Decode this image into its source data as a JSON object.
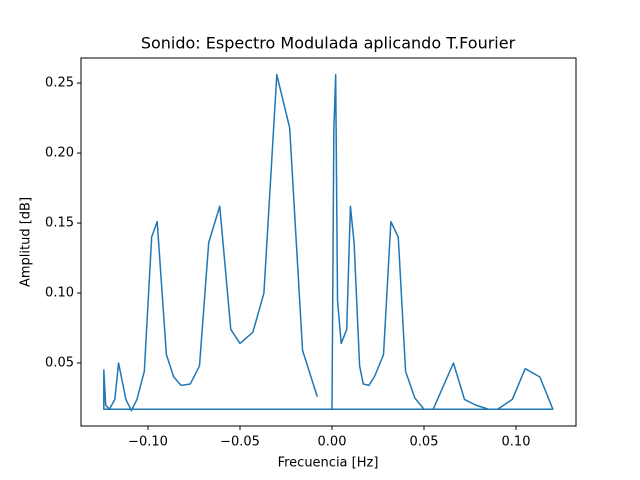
{
  "chart_data": {
    "type": "line",
    "title": "Sonido: Espectro Modulada aplicando T.Fourier",
    "title_color": "#0000ff",
    "x_label": "Frecuencia [Hz]",
    "x_label_color": "#ff0000",
    "y_label": "Amplitud [dB]",
    "y_label_color": "#ffa500",
    "xlim": [
      -0.1364,
      0.1326
    ],
    "ylim": [
      0.005,
      0.2679
    ],
    "xticks": [
      {
        "value": -0.1,
        "label": "−0.10"
      },
      {
        "value": -0.05,
        "label": "−0.05"
      },
      {
        "value": 0,
        "label": "0.00"
      },
      0.05,
      {
        "value": 0.1,
        "label": "0.10"
      }
    ],
    "yticks": [
      0.05,
      {
        "value": 0.1,
        "label": "0.10"
      },
      0.15,
      {
        "value": 0.2,
        "label": "0.20"
      },
      0.25
    ],
    "series": [
      {
        "color": "#1f77b4",
        "x": [
          0.0,
          0.001,
          0.002,
          0.003,
          0.005,
          0.008,
          0.01,
          0.012,
          0.015,
          0.017,
          0.02,
          0.023,
          0.028,
          0.032,
          0.036,
          0.04,
          0.045,
          0.05,
          0.055,
          0.066,
          0.072,
          0.078,
          0.085,
          0.09,
          0.098,
          0.105,
          0.113,
          0.12,
          -0.124,
          -0.124,
          -0.123,
          -0.121,
          -0.118,
          -0.116,
          -0.112,
          -0.109,
          -0.106,
          -0.102,
          -0.098,
          -0.095,
          -0.09,
          -0.086,
          -0.082,
          -0.077,
          -0.072,
          -0.067,
          -0.061,
          -0.055,
          -0.05,
          -0.043,
          -0.037,
          -0.03,
          -0.023,
          -0.016,
          -0.008
        ],
        "values": [
          0.017,
          0.216,
          0.256,
          0.095,
          0.064,
          0.074,
          0.162,
          0.136,
          0.048,
          0.035,
          0.034,
          0.04,
          0.056,
          0.151,
          0.14,
          0.044,
          0.025,
          0.017,
          0.017,
          0.05,
          0.024,
          0.02,
          0.017,
          0.017,
          0.024,
          0.046,
          0.04,
          0.017,
          0.017,
          0.045,
          0.02,
          0.017,
          0.024,
          0.05,
          0.024,
          0.016,
          0.024,
          0.044,
          0.14,
          0.151,
          0.056,
          0.04,
          0.034,
          0.035,
          0.048,
          0.136,
          0.162,
          0.074,
          0.064,
          0.072,
          0.1,
          0.256,
          0.218,
          0.059,
          0.026
        ]
      }
    ]
  }
}
